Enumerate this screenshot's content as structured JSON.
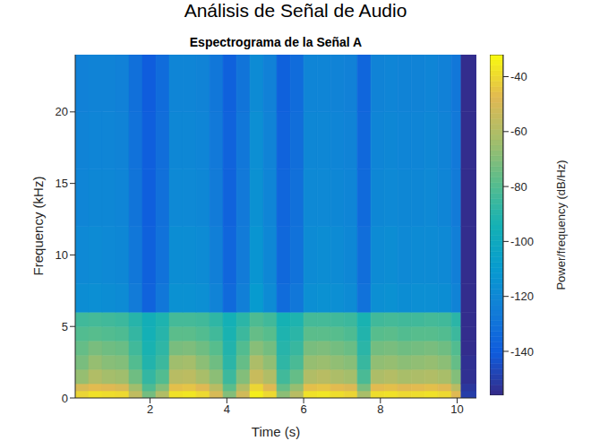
{
  "chart_data": {
    "type": "heatmap",
    "title": "Análisis de Señal de Audio",
    "subtitle": "Espectrograma de la Señal A",
    "x_label": "Time (s)",
    "y_label": "Frequency (kHz)",
    "xlim": [
      0.05,
      10.5
    ],
    "xticks": [
      2,
      4,
      6,
      8,
      10
    ],
    "ylim": [
      0,
      24
    ],
    "yticks": [
      0,
      5,
      10,
      15,
      20
    ],
    "time_edges": [
      0.05,
      0.4,
      0.75,
      1.1,
      1.45,
      1.8,
      2.15,
      2.5,
      2.85,
      3.2,
      3.55,
      3.9,
      4.25,
      4.6,
      4.95,
      5.3,
      5.65,
      6.0,
      6.35,
      6.7,
      7.05,
      7.4,
      7.75,
      8.1,
      8.45,
      8.8,
      9.15,
      9.5,
      9.85,
      10.1,
      10.5
    ],
    "frequency_edges": [
      0,
      0.5,
      1,
      2,
      3,
      4,
      5,
      6,
      8,
      12,
      16,
      20,
      24
    ],
    "cells": [
      [
        -41,
        -50,
        -66,
        -72,
        -76,
        -80,
        -84,
        -117,
        -119,
        -121,
        -122,
        -123
      ],
      [
        -38,
        -47,
        -60,
        -66,
        -72,
        -79,
        -83,
        -116,
        -118,
        -120,
        -121,
        -122
      ],
      [
        -39,
        -48,
        -63,
        -69,
        -74,
        -80,
        -84,
        -117,
        -119,
        -120,
        -121,
        -122
      ],
      [
        -40,
        -50,
        -64,
        -70,
        -75,
        -81,
        -85,
        -118,
        -120,
        -121,
        -122,
        -123
      ],
      [
        -56,
        -64,
        -74,
        -80,
        -84,
        -87,
        -90,
        -126,
        -128,
        -129,
        -130,
        -131
      ],
      [
        -73,
        -81,
        -87,
        -91,
        -93,
        -95,
        -96,
        -137,
        -138,
        -139,
        -139,
        -140
      ],
      [
        -60,
        -70,
        -80,
        -85,
        -88,
        -90,
        -92,
        -128,
        -130,
        -131,
        -132,
        -133
      ],
      [
        -38,
        -46,
        -58,
        -64,
        -72,
        -78,
        -83,
        -115,
        -117,
        -119,
        -120,
        -121
      ],
      [
        -37,
        -45,
        -57,
        -63,
        -71,
        -78,
        -83,
        -115,
        -117,
        -119,
        -120,
        -121
      ],
      [
        -40,
        -48,
        -62,
        -68,
        -74,
        -80,
        -84,
        -116,
        -118,
        -120,
        -121,
        -122
      ],
      [
        -50,
        -58,
        -68,
        -74,
        -79,
        -84,
        -88,
        -122,
        -124,
        -126,
        -127,
        -128
      ],
      [
        -70,
        -78,
        -85,
        -89,
        -91,
        -93,
        -95,
        -134,
        -136,
        -137,
        -137,
        -138
      ],
      [
        -52,
        -60,
        -70,
        -76,
        -80,
        -85,
        -89,
        -124,
        -126,
        -127,
        -128,
        -129
      ],
      [
        -35,
        -41,
        -54,
        -61,
        -69,
        -76,
        -81,
        -110,
        -113,
        -115,
        -116,
        -118
      ],
      [
        -40,
        -48,
        -60,
        -67,
        -73,
        -79,
        -84,
        -118,
        -120,
        -121,
        -122,
        -123
      ],
      [
        -68,
        -76,
        -84,
        -88,
        -90,
        -92,
        -94,
        -133,
        -135,
        -136,
        -137,
        -138
      ],
      [
        -58,
        -66,
        -76,
        -82,
        -86,
        -89,
        -92,
        -128,
        -130,
        -131,
        -132,
        -133
      ],
      [
        -38,
        -46,
        -60,
        -66,
        -72,
        -78,
        -83,
        -116,
        -118,
        -119,
        -120,
        -121
      ],
      [
        -37,
        -45,
        -58,
        -65,
        -71,
        -78,
        -83,
        -115,
        -117,
        -119,
        -120,
        -121
      ],
      [
        -39,
        -47,
        -61,
        -67,
        -73,
        -79,
        -84,
        -116,
        -118,
        -120,
        -121,
        -122
      ],
      [
        -41,
        -49,
        -63,
        -69,
        -75,
        -81,
        -85,
        -118,
        -120,
        -121,
        -122,
        -123
      ],
      [
        -62,
        -72,
        -82,
        -86,
        -89,
        -91,
        -93,
        -130,
        -132,
        -134,
        -135,
        -136
      ],
      [
        -39,
        -47,
        -61,
        -67,
        -73,
        -79,
        -84,
        -116,
        -118,
        -120,
        -121,
        -122
      ],
      [
        -38,
        -46,
        -59,
        -66,
        -72,
        -78,
        -83,
        -115,
        -117,
        -119,
        -120,
        -121
      ],
      [
        -40,
        -48,
        -62,
        -68,
        -74,
        -80,
        -84,
        -117,
        -119,
        -120,
        -121,
        -122
      ],
      [
        -39,
        -47,
        -61,
        -67,
        -73,
        -79,
        -84,
        -116,
        -118,
        -120,
        -121,
        -122
      ],
      [
        -38,
        -46,
        -60,
        -66,
        -72,
        -79,
        -83,
        -116,
        -118,
        -119,
        -120,
        -121
      ],
      [
        -40,
        -48,
        -62,
        -68,
        -74,
        -80,
        -84,
        -117,
        -119,
        -121,
        -122,
        -123
      ],
      [
        -48,
        -58,
        -70,
        -76,
        -80,
        -85,
        -89,
        -122,
        -124,
        -126,
        -127,
        -128
      ],
      [
        -150,
        -152,
        -154,
        -154,
        -155,
        -155,
        -155,
        -155,
        -155,
        -155,
        -155,
        -155
      ]
    ],
    "colorbar": {
      "label": "Power/frequency (dB/Hz)",
      "range": [
        -156,
        -32
      ],
      "ticks": [
        -140,
        -120,
        -100,
        -80,
        -60,
        -40
      ]
    }
  }
}
